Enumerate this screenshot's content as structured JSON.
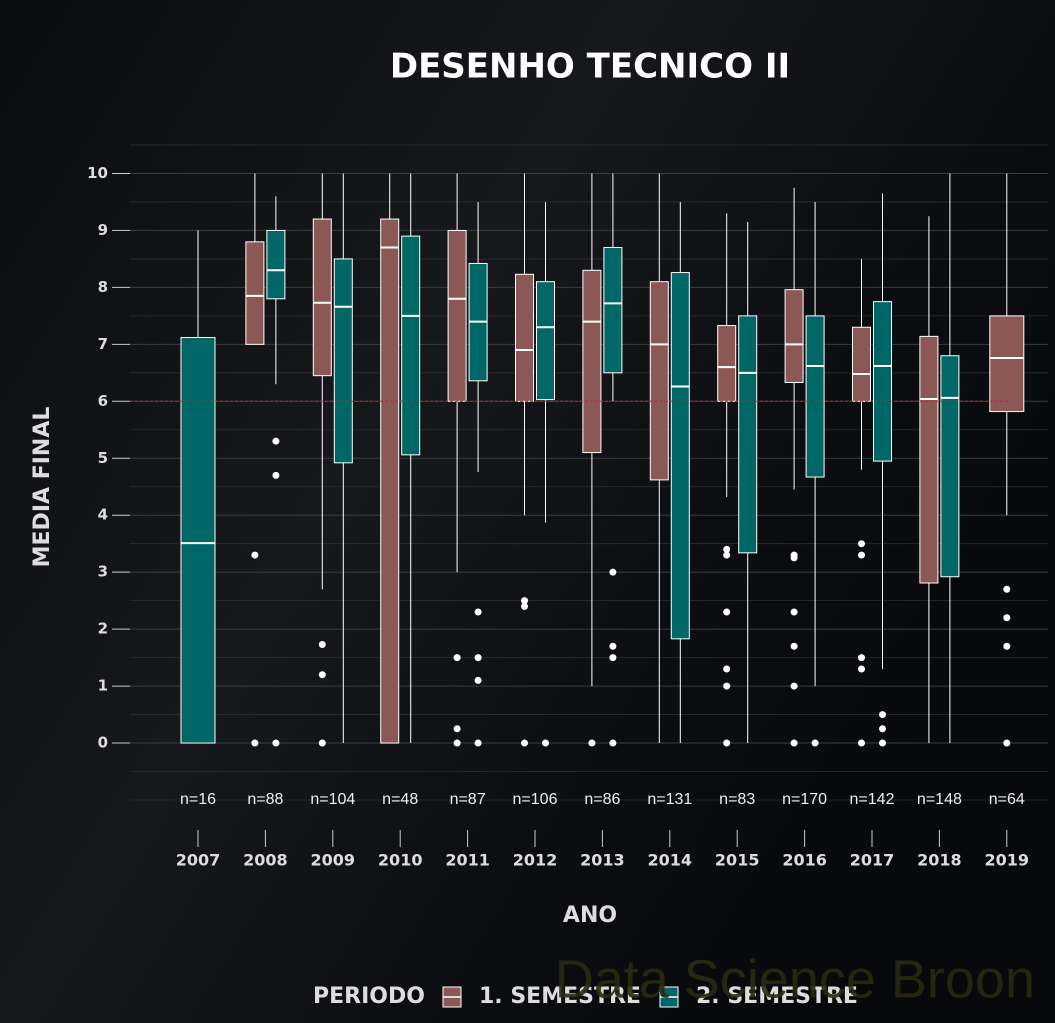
{
  "chart_data": {
    "type": "boxplot",
    "title": "DESENHO TECNICO II",
    "x_label": "ANO",
    "y_label": "MEDIA FINAL",
    "legend_title": "PERIODO",
    "legend_position": "bottom",
    "watermark": "Data Science Broon",
    "reference_line": 6,
    "reference_color": "#cc2222",
    "grid": true,
    "ylim": [
      -1,
      10.5
    ],
    "yticks": [
      0,
      1,
      2,
      3,
      4,
      5,
      6,
      7,
      8,
      9,
      10
    ],
    "y_minor_ticks": [
      -1,
      -0.5,
      0.5,
      1.5,
      2.5,
      3.5,
      4.5,
      5.5,
      6.5,
      7.5,
      8.5,
      9.5,
      10.5
    ],
    "categories": [
      "2007",
      "2008",
      "2009",
      "2010",
      "2011",
      "2012",
      "2013",
      "2014",
      "2015",
      "2016",
      "2017",
      "2018",
      "2019"
    ],
    "n_labels": [
      "n=16",
      "n=88",
      "n=104",
      "n=48",
      "n=87",
      "n=106",
      "n=86",
      "n=131",
      "n=83",
      "n=170",
      "n=142",
      "n=148",
      "n=64"
    ],
    "series": [
      {
        "name": "1. SEMESTRE",
        "color": "#8b5855",
        "values": [
          null,
          {
            "whislo": 7.0,
            "q1": 7.0,
            "med": 7.85,
            "q3": 8.8,
            "whishi": 10,
            "fliers": [
              3.3,
              0
            ]
          },
          {
            "whislo": 2.7,
            "q1": 6.45,
            "med": 7.73,
            "q3": 9.2,
            "whishi": 10,
            "fliers": [
              1.73,
              1.2,
              0
            ]
          },
          {
            "whislo": 0,
            "q1": 0,
            "med": 8.7,
            "q3": 9.2,
            "whishi": 10,
            "fliers": []
          },
          {
            "whislo": 3.0,
            "q1": 6.0,
            "med": 7.8,
            "q3": 9.0,
            "whishi": 10,
            "fliers": [
              1.5,
              0.25,
              0
            ]
          },
          {
            "whislo": 4.0,
            "q1": 6.0,
            "med": 6.9,
            "q3": 8.23,
            "whishi": 10,
            "fliers": [
              2.5,
              2.4,
              0
            ]
          },
          {
            "whislo": 1.0,
            "q1": 5.1,
            "med": 7.4,
            "q3": 8.3,
            "whishi": 10,
            "fliers": [
              0
            ]
          },
          {
            "whislo": 0,
            "q1": 4.62,
            "med": 7.0,
            "q3": 8.1,
            "whishi": 10,
            "fliers": []
          },
          {
            "whislo": 4.32,
            "q1": 6.0,
            "med": 6.6,
            "q3": 7.33,
            "whishi": 9.3,
            "fliers": [
              3.4,
              3.3,
              2.3,
              1.3,
              1.0,
              0
            ]
          },
          {
            "whislo": 4.45,
            "q1": 6.33,
            "med": 7.0,
            "q3": 7.96,
            "whishi": 9.75,
            "fliers": [
              3.3,
              3.25,
              2.3,
              1.7,
              1.0,
              0
            ]
          },
          {
            "whislo": 4.8,
            "q1": 6.0,
            "med": 6.48,
            "q3": 7.3,
            "whishi": 8.5,
            "fliers": [
              3.5,
              3.3,
              1.5,
              1.3,
              0
            ]
          },
          {
            "whislo": 0,
            "q1": 2.81,
            "med": 6.04,
            "q3": 7.14,
            "whishi": 9.25,
            "fliers": []
          },
          {
            "whislo": 4.0,
            "q1": 5.82,
            "med": 6.76,
            "q3": 7.5,
            "whishi": 10,
            "fliers": [
              2.7,
              2.2,
              1.7,
              0
            ]
          }
        ]
      },
      {
        "name": "2. SEMESTRE",
        "color": "#006666",
        "values": [
          {
            "whislo": 0,
            "q1": 0,
            "med": 3.51,
            "q3": 7.12,
            "whishi": 9.0,
            "fliers": []
          },
          {
            "whislo": 6.3,
            "q1": 7.8,
            "med": 8.3,
            "q3": 9.0,
            "whishi": 9.6,
            "fliers": [
              5.3,
              4.7,
              0
            ]
          },
          {
            "whislo": 0,
            "q1": 4.92,
            "med": 7.66,
            "q3": 8.5,
            "whishi": 10,
            "fliers": []
          },
          {
            "whislo": 0,
            "q1": 5.06,
            "med": 7.5,
            "q3": 8.9,
            "whishi": 10,
            "fliers": []
          },
          {
            "whislo": 4.76,
            "q1": 6.36,
            "med": 7.4,
            "q3": 8.42,
            "whishi": 9.5,
            "fliers": [
              2.3,
              1.5,
              1.1,
              0
            ]
          },
          {
            "whislo": 3.87,
            "q1": 6.03,
            "med": 7.3,
            "q3": 8.1,
            "whishi": 9.5,
            "fliers": [
              0
            ]
          },
          {
            "whislo": 6.0,
            "q1": 6.5,
            "med": 7.72,
            "q3": 8.7,
            "whishi": 10,
            "fliers": [
              3.0,
              1.7,
              1.5,
              0
            ]
          },
          {
            "whislo": 0,
            "q1": 1.83,
            "med": 6.26,
            "q3": 8.26,
            "whishi": 9.5,
            "fliers": []
          },
          {
            "whislo": 0,
            "q1": 3.34,
            "med": 6.5,
            "q3": 7.5,
            "whishi": 9.15,
            "fliers": []
          },
          {
            "whislo": 1.0,
            "q1": 4.67,
            "med": 6.62,
            "q3": 7.5,
            "whishi": 9.5,
            "fliers": [
              0
            ]
          },
          {
            "whislo": 1.3,
            "q1": 4.95,
            "med": 6.62,
            "q3": 7.75,
            "whishi": 9.65,
            "fliers": [
              0.5,
              0.25,
              0
            ]
          },
          {
            "whislo": 0,
            "q1": 2.92,
            "med": 6.06,
            "q3": 6.8,
            "whishi": 10,
            "fliers": []
          },
          null
        ]
      }
    ]
  }
}
